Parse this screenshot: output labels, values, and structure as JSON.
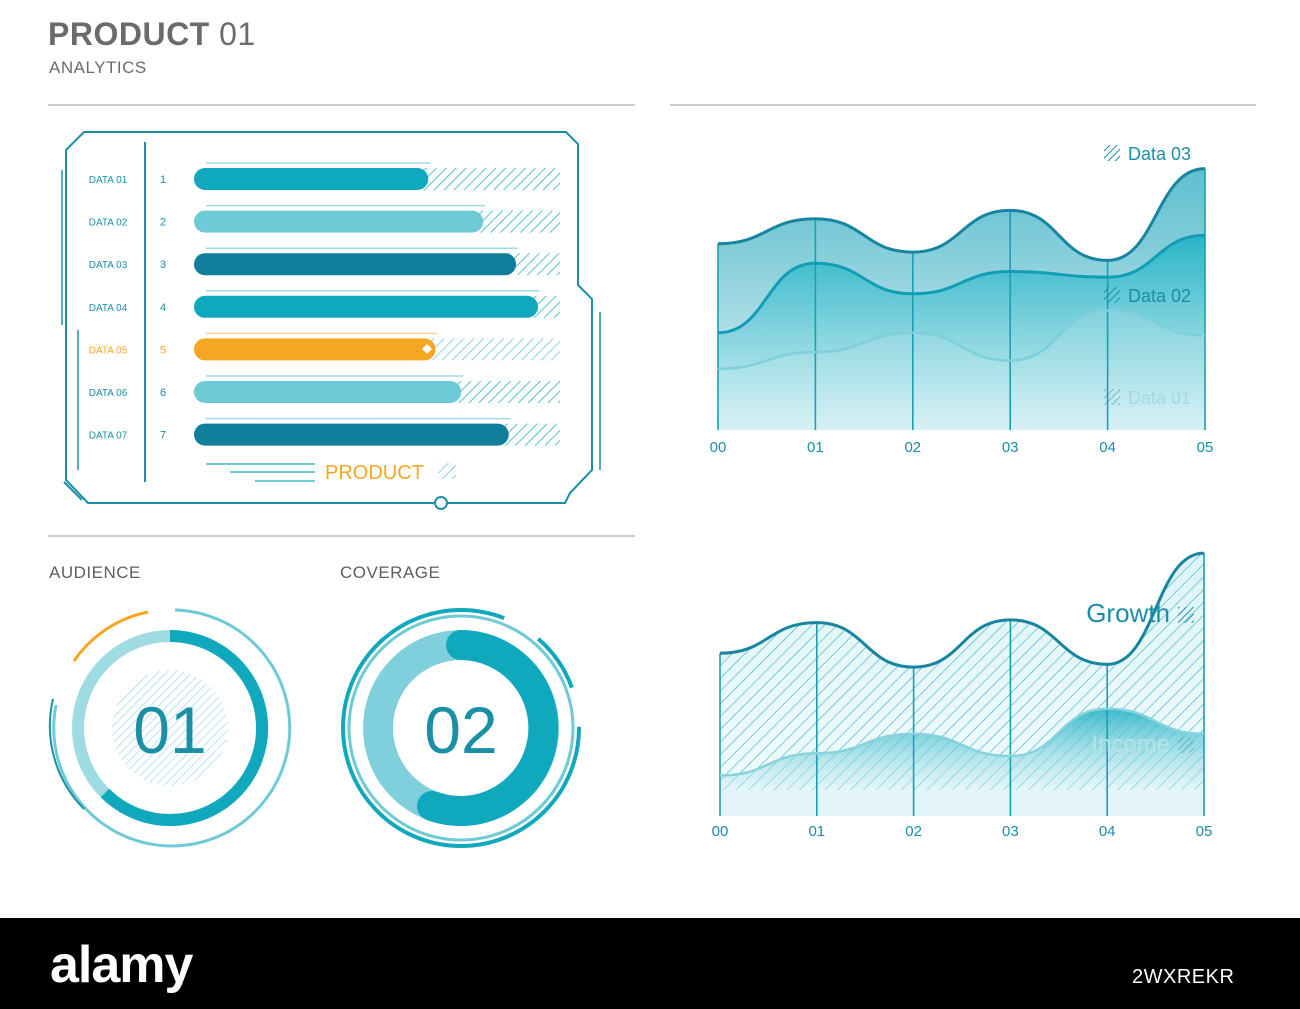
{
  "header": {
    "title_bold": "PRODUCT",
    "title_num": "01",
    "subtitle": "ANALYTICS"
  },
  "bar_panel": {
    "legend_label": "PRODUCT",
    "highlight_color": "#f5a623",
    "colors": [
      "#0fa8bd",
      "#6ecad6",
      "#117f9c",
      "#0fa8bd",
      "#f5a623",
      "#6ecad6",
      "#117f9c"
    ]
  },
  "gauges": {
    "audience": {
      "label": "AUDIENCE",
      "value": "01"
    },
    "coverage": {
      "label": "COVERAGE",
      "value": "02"
    }
  },
  "footer": {
    "brand": "alamy",
    "image_code": "2WXREKR"
  },
  "chart_data": [
    {
      "type": "bar",
      "orientation": "horizontal",
      "categories": [
        "DATA 01",
        "DATA 02",
        "DATA 03",
        "DATA 04",
        "DATA 05",
        "DATA 06",
        "DATA 07"
      ],
      "ranks": [
        "1",
        "2",
        "3",
        "4",
        "5",
        "6",
        "7"
      ],
      "values": [
        64,
        79,
        88,
        94,
        66,
        73,
        86
      ],
      "xlim": [
        0,
        100
      ],
      "highlight_index": 4,
      "legend": "PRODUCT"
    },
    {
      "type": "area",
      "x": [
        "00",
        "01",
        "02",
        "03",
        "04",
        "05"
      ],
      "ylim": [
        0,
        100
      ],
      "series": [
        {
          "name": "Data 03",
          "values": [
            67,
            76,
            64,
            79,
            61,
            94
          ]
        },
        {
          "name": "Data 02",
          "values": [
            35,
            60,
            49,
            57,
            55,
            70
          ]
        },
        {
          "name": "Data 01",
          "values": [
            22,
            28,
            35,
            25,
            43,
            34
          ]
        }
      ],
      "legend_position": "right"
    },
    {
      "type": "area",
      "x": [
        "00",
        "01",
        "02",
        "03",
        "04",
        "05"
      ],
      "ylim": [
        0,
        100
      ],
      "series": [
        {
          "name": "Growth",
          "values": [
            60,
            71,
            55,
            72,
            56,
            96
          ]
        },
        {
          "name": "Income",
          "values": [
            16,
            24,
            31,
            23,
            40,
            31
          ]
        }
      ],
      "legend_position": "right"
    }
  ]
}
